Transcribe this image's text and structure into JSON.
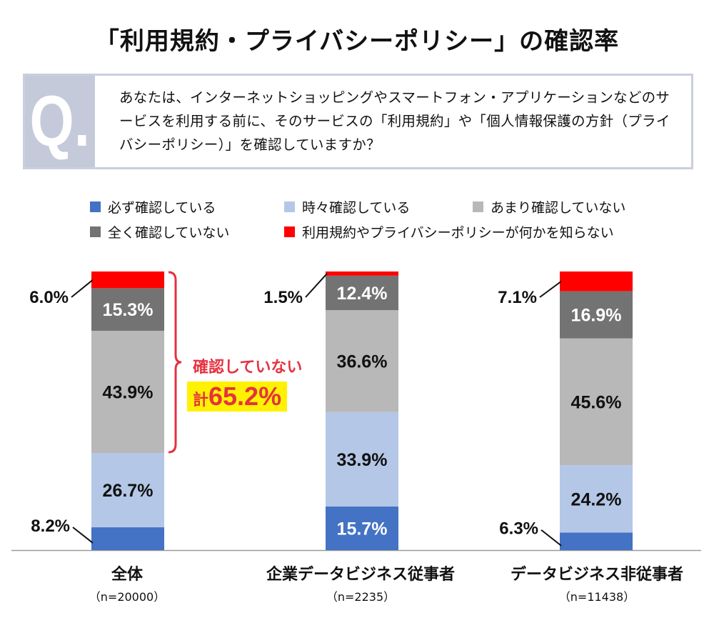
{
  "title": "「利用規約・プライバシーポリシー」の確認率",
  "question": {
    "badge": "Q.",
    "text": "あなたは、インターネットショッピングやスマートフォン・アプリケーションなどのサービスを利用する前に、そのサービスの「利用規約」や「個人情報保護の方針（プライバシーポリシー）」を確認していますか？"
  },
  "legend": [
    {
      "label": "必ず確認している",
      "color": "#4472c4"
    },
    {
      "label": "時々確認している",
      "color": "#b4c7e7"
    },
    {
      "label": "あまり確認していない",
      "color": "#b8b8b8"
    },
    {
      "label": "全く確認していない",
      "color": "#737373"
    },
    {
      "label": "利用規約やプライバシーポリシーが何かを知らない",
      "color": "#ff0000"
    }
  ],
  "callout": {
    "line1": "確認していない",
    "prefix": "計",
    "value": "65.2%"
  },
  "chart_data": {
    "type": "bar",
    "stacked": true,
    "categories": [
      "全体",
      "企業データビジネス従事者",
      "データビジネス非従事者"
    ],
    "sample_sizes": [
      "（n=20000）",
      "（n=2235）",
      "（n=11438）"
    ],
    "series": [
      {
        "name": "必ず確認している",
        "values": [
          8.2,
          15.7,
          6.3
        ],
        "labels": [
          "8.2%",
          "15.7%",
          "6.3%"
        ]
      },
      {
        "name": "時々確認している",
        "values": [
          26.7,
          33.9,
          24.2
        ],
        "labels": [
          "26.7%",
          "33.9%",
          "24.2%"
        ]
      },
      {
        "name": "あまり確認していない",
        "values": [
          43.9,
          36.6,
          45.6
        ],
        "labels": [
          "43.9%",
          "36.6%",
          "45.6%"
        ]
      },
      {
        "name": "全く確認していない",
        "values": [
          15.3,
          12.4,
          16.9
        ],
        "labels": [
          "15.3%",
          "12.4%",
          "16.9%"
        ]
      },
      {
        "name": "利用規約やプライバシーポリシーが何かを知らない",
        "values": [
          6.0,
          1.5,
          7.1
        ],
        "labels": [
          "6.0%",
          "1.5%",
          "7.1%"
        ]
      }
    ],
    "ylim": [
      0,
      100
    ]
  }
}
